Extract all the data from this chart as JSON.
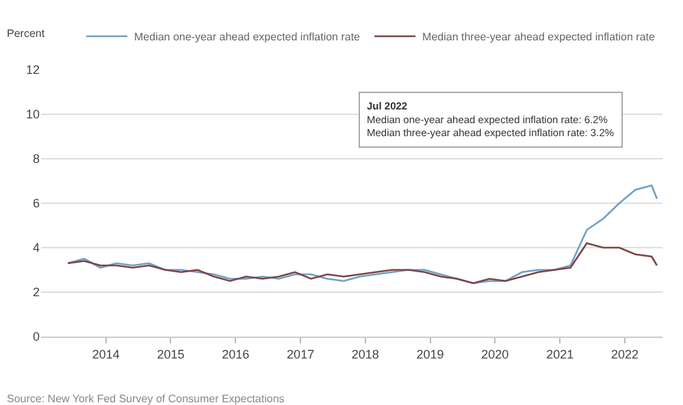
{
  "chart_data": {
    "type": "line",
    "ylabel": "Percent",
    "x": [
      "2013-06",
      "2013-09",
      "2013-12",
      "2014-03",
      "2014-06",
      "2014-09",
      "2014-12",
      "2015-03",
      "2015-06",
      "2015-09",
      "2015-12",
      "2016-03",
      "2016-06",
      "2016-09",
      "2016-12",
      "2017-03",
      "2017-06",
      "2017-09",
      "2017-12",
      "2018-03",
      "2018-06",
      "2018-09",
      "2018-12",
      "2019-03",
      "2019-06",
      "2019-09",
      "2019-12",
      "2020-03",
      "2020-06",
      "2020-09",
      "2020-12",
      "2021-03",
      "2021-06",
      "2021-09",
      "2021-12",
      "2022-03",
      "2022-06",
      "2022-07"
    ],
    "series": [
      {
        "name": "Median one-year ahead expected inflation rate",
        "color": "#6f9fc6",
        "values": [
          3.3,
          3.5,
          3.1,
          3.3,
          3.2,
          3.3,
          3.0,
          3.0,
          2.9,
          2.8,
          2.6,
          2.6,
          2.7,
          2.6,
          2.8,
          2.8,
          2.6,
          2.5,
          2.7,
          2.8,
          2.9,
          3.0,
          3.0,
          2.8,
          2.6,
          2.4,
          2.5,
          2.5,
          2.9,
          3.0,
          3.0,
          3.2,
          4.8,
          5.3,
          6.0,
          6.6,
          6.8,
          6.2
        ]
      },
      {
        "name": "Median three-year ahead expected inflation rate",
        "color": "#7d4545",
        "values": [
          3.3,
          3.4,
          3.2,
          3.2,
          3.1,
          3.2,
          3.0,
          2.9,
          3.0,
          2.7,
          2.5,
          2.7,
          2.6,
          2.7,
          2.9,
          2.6,
          2.8,
          2.7,
          2.8,
          2.9,
          3.0,
          3.0,
          2.9,
          2.7,
          2.6,
          2.4,
          2.6,
          2.5,
          2.7,
          2.9,
          3.0,
          3.1,
          4.2,
          4.0,
          4.0,
          3.7,
          3.6,
          3.2
        ]
      }
    ],
    "ylim": [
      0,
      12
    ],
    "yticks": [
      0,
      2,
      4,
      6,
      8,
      10,
      12
    ],
    "xlim": [
      "2013-01",
      "2022-08"
    ],
    "xticks": [
      {
        "value": "2014-01",
        "label": "2014"
      },
      {
        "value": "2015-01",
        "label": "2015"
      },
      {
        "value": "2016-01",
        "label": "2016"
      },
      {
        "value": "2017-01",
        "label": "2017"
      },
      {
        "value": "2018-01",
        "label": "2018"
      },
      {
        "value": "2019-01",
        "label": "2019"
      },
      {
        "value": "2020-01",
        "label": "2020"
      },
      {
        "value": "2021-01",
        "label": "2021"
      },
      {
        "value": "2022-01",
        "label": "2022"
      }
    ],
    "grid": "y",
    "legend": "top",
    "marker": "none",
    "annotations": [
      "Jul 2022",
      "Median one-year ahead expected inflation rate: 6.2%",
      "Median three-year ahead expected inflation rate: 3.2%",
      "Source: New York Fed Survey of Consumer Expectations"
    ]
  }
}
